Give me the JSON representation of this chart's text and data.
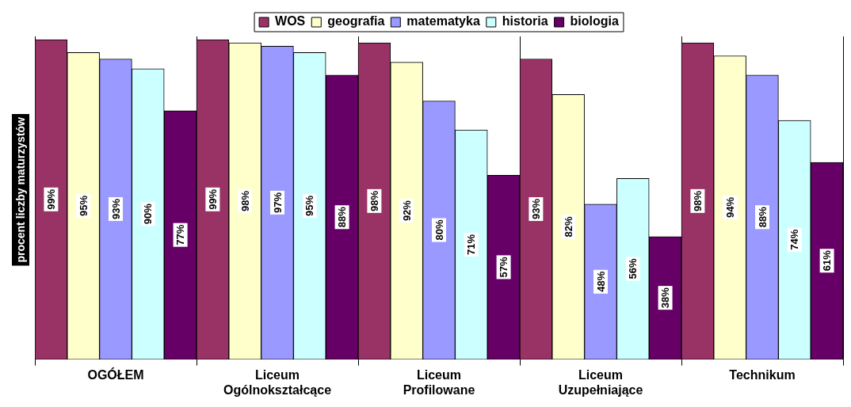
{
  "chart_data": {
    "type": "bar",
    "ylabel": "procent liczby maturzystów",
    "categories": [
      "OGÓŁEM",
      "Liceum Ogólnokształcące",
      "Liceum Profilowane",
      "Liceum Uzupełniające",
      "Technikum"
    ],
    "series": [
      {
        "name": "WOS",
        "color": "#993366",
        "values": [
          99,
          99,
          98,
          93,
          98
        ],
        "value_labels": [
          "99%",
          "99%",
          "98%",
          "93%",
          "98%"
        ]
      },
      {
        "name": "geografia",
        "color": "#ffffcc",
        "values": [
          95,
          98,
          92,
          82,
          94
        ],
        "value_labels": [
          "95%",
          "98%",
          "92%",
          "82%",
          "94%"
        ]
      },
      {
        "name": "matematyka",
        "color": "#9999ff",
        "values": [
          93,
          97,
          80,
          48,
          88
        ],
        "value_labels": [
          "93%",
          "97%",
          "80%",
          "48%",
          "88%"
        ]
      },
      {
        "name": "historia",
        "color": "#ccffff",
        "values": [
          90,
          95,
          71,
          56,
          74
        ],
        "value_labels": [
          "90%",
          "95%",
          "71%",
          "56%",
          "74%"
        ]
      },
      {
        "name": "biologia",
        "color": "#660066",
        "values": [
          77,
          88,
          57,
          38,
          61
        ],
        "value_labels": [
          "77%",
          "88%",
          "57%",
          "38%",
          "61%"
        ]
      }
    ],
    "grid": "x",
    "legend": "top"
  }
}
